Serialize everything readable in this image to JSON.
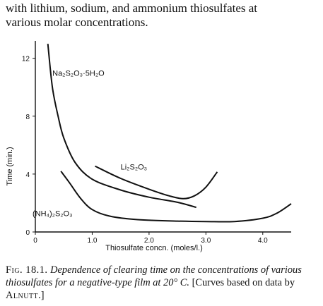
{
  "header_text": {
    "line1": "with lithium, sodium, and ammonium thiosulfates at",
    "line2": "various molar concentrations."
  },
  "caption": {
    "fig_label": "Fig. 18.1.",
    "description": "Dependence of clearing time on the concentrations of various thiosulfates for a negative-type film at 20° C.",
    "note_prefix": "[Curves based on data by ",
    "author": "Alnutt",
    "note_suffix": ".]"
  },
  "chart_data": {
    "type": "line",
    "xlabel": "Thiosulfate concn. (moles/l.)",
    "ylabel": "Time (min.)",
    "xlim": [
      0,
      4.5
    ],
    "ylim": [
      0,
      13.2
    ],
    "x_ticks": [
      {
        "value": 0,
        "label": "0"
      },
      {
        "value": 1.0,
        "label": "1.0"
      },
      {
        "value": 2.0,
        "label": "2.0"
      },
      {
        "value": 3.0,
        "label": "3.0"
      },
      {
        "value": 4.0,
        "label": "4.0"
      }
    ],
    "y_ticks": [
      {
        "value": 0,
        "label": "0"
      },
      {
        "value": 4,
        "label": "4"
      },
      {
        "value": 8,
        "label": "8"
      },
      {
        "value": 12,
        "label": "12"
      }
    ],
    "grid": false,
    "series": [
      {
        "name": "Na₂S₂O₃·5H₂O",
        "label_at": {
          "x": 0.3,
          "y": 10.8
        },
        "points": [
          [
            0.22,
            13.0
          ],
          [
            0.3,
            10.0
          ],
          [
            0.4,
            8.0
          ],
          [
            0.5,
            6.5
          ],
          [
            0.7,
            4.8
          ],
          [
            1.0,
            3.65
          ],
          [
            1.5,
            2.9
          ],
          [
            2.0,
            2.4
          ],
          [
            2.5,
            2.05
          ],
          [
            2.83,
            1.7
          ]
        ]
      },
      {
        "name": "Li₂S₂O₃",
        "label_at": {
          "x": 1.5,
          "y": 4.3
        },
        "points": [
          [
            1.05,
            4.55
          ],
          [
            1.5,
            3.7
          ],
          [
            2.0,
            2.95
          ],
          [
            2.35,
            2.5
          ],
          [
            2.6,
            2.3
          ],
          [
            2.8,
            2.5
          ],
          [
            3.0,
            3.1
          ],
          [
            3.2,
            4.15
          ]
        ]
      },
      {
        "name": "(NH₄)₂S₂O₃",
        "label_at": {
          "x": -0.05,
          "y": 1.1
        },
        "points": [
          [
            0.45,
            4.2
          ],
          [
            0.6,
            3.4
          ],
          [
            0.8,
            2.3
          ],
          [
            1.0,
            1.55
          ],
          [
            1.3,
            1.1
          ],
          [
            1.8,
            0.85
          ],
          [
            2.5,
            0.75
          ],
          [
            3.0,
            0.72
          ],
          [
            3.5,
            0.72
          ],
          [
            4.0,
            0.95
          ],
          [
            4.25,
            1.3
          ],
          [
            4.5,
            1.95
          ]
        ]
      }
    ]
  }
}
